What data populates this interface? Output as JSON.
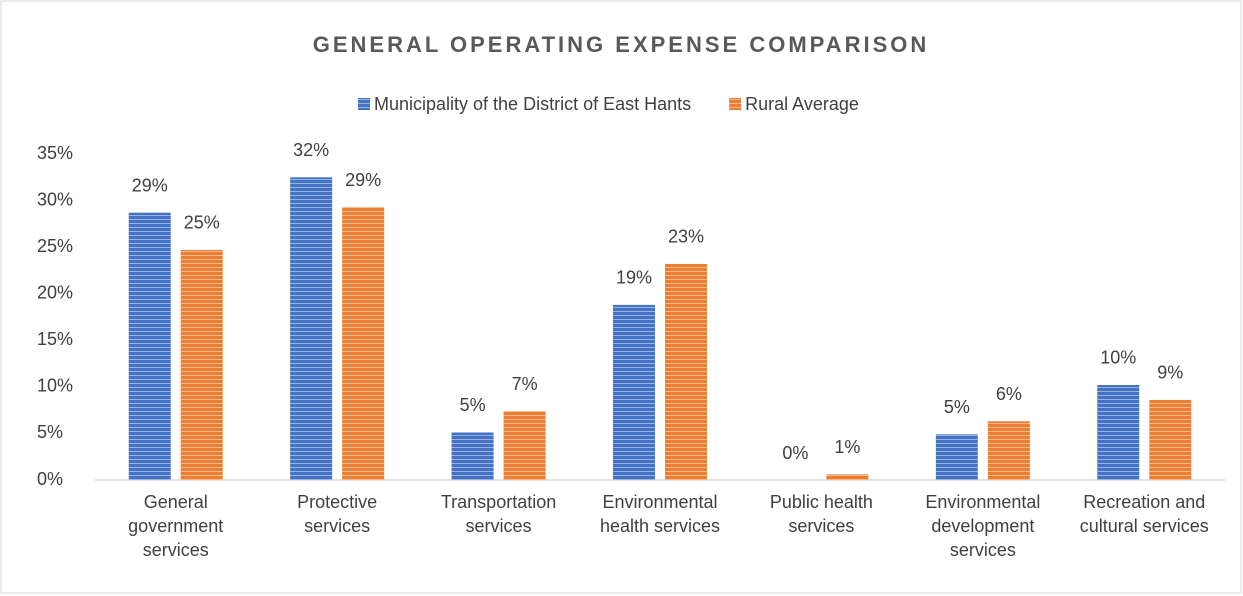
{
  "chart_data": {
    "type": "bar",
    "title": "GENERAL OPERATING EXPENSE COMPARISON",
    "categories": [
      "General government services",
      "Protective services",
      "Transportation services",
      "Environmental health services",
      "Public health services",
      "Environmental development services",
      "Recreation and cultural services"
    ],
    "series": [
      {
        "name": "Municipality of the District of East Hants",
        "color": "#4472c4",
        "values": [
          28.7,
          32.5,
          5.1,
          18.8,
          0,
          4.9,
          10.2
        ],
        "value_labels": [
          "29%",
          "32%",
          "5%",
          "19%",
          "0%",
          "5%",
          "10%"
        ]
      },
      {
        "name": "Rural Average",
        "color": "#ed7d31",
        "values": [
          24.7,
          29.3,
          7.4,
          23.2,
          0.6,
          6.3,
          8.6
        ],
        "value_labels": [
          "25%",
          "29%",
          "7%",
          "23%",
          "1%",
          "6%",
          "9%"
        ]
      }
    ],
    "ylim": [
      0,
      35
    ],
    "yticks": [
      {
        "value": 0,
        "label": "0%"
      },
      {
        "value": 5,
        "label": "5%"
      },
      {
        "value": 10,
        "label": "10%"
      },
      {
        "value": 15,
        "label": "15%"
      },
      {
        "value": 20,
        "label": "20%"
      },
      {
        "value": 25,
        "label": "25%"
      },
      {
        "value": 30,
        "label": "30%"
      },
      {
        "value": 35,
        "label": "35%"
      }
    ],
    "legend": "top"
  }
}
